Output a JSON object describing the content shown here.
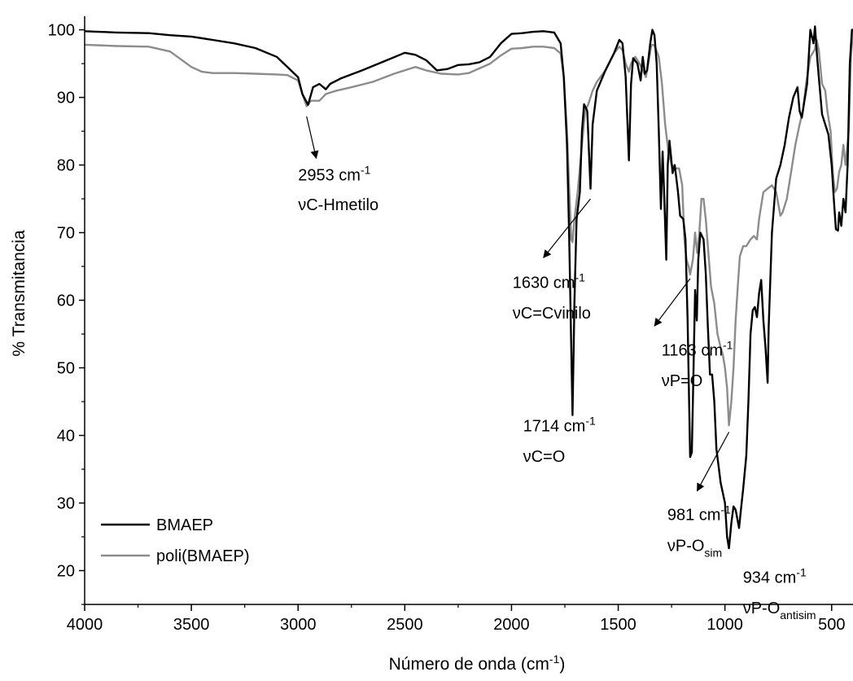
{
  "chart_data": {
    "type": "line",
    "title": "",
    "xlabel": "Número de onda (cm",
    "xlabel_sup": "-1",
    "xlabel_tail": ")",
    "ylabel": "% Transmitancia",
    "xlim": [
      4000,
      400
    ],
    "ylim": [
      15,
      102
    ],
    "x_reversed": true,
    "xticks": [
      4000,
      3500,
      3000,
      2500,
      2000,
      1500,
      1000,
      500
    ],
    "xtick_labels": [
      "4000",
      "3500",
      "3000",
      "2500",
      "2000",
      "1500",
      "1000",
      "500"
    ],
    "yticks": [
      20,
      30,
      40,
      50,
      60,
      70,
      80,
      90,
      100
    ],
    "ytick_labels": [
      "20",
      "30",
      "40",
      "50",
      "60",
      "70",
      "80",
      "90",
      "100"
    ],
    "grid": false,
    "legend_position": "bottom-left",
    "series": [
      {
        "name": "BMAEP",
        "color": "#000000",
        "points": [
          [
            4000,
            99.8
          ],
          [
            3850,
            99.6
          ],
          [
            3700,
            99.5
          ],
          [
            3600,
            99.2
          ],
          [
            3500,
            99
          ],
          [
            3400,
            98.5
          ],
          [
            3300,
            98
          ],
          [
            3200,
            97.3
          ],
          [
            3100,
            96
          ],
          [
            3050,
            94.5
          ],
          [
            3000,
            93
          ],
          [
            2980,
            90.5
          ],
          [
            2953,
            88.9
          ],
          [
            2930,
            91.5
          ],
          [
            2900,
            92
          ],
          [
            2870,
            91.2
          ],
          [
            2850,
            92
          ],
          [
            2800,
            92.8
          ],
          [
            2700,
            94
          ],
          [
            2600,
            95.3
          ],
          [
            2500,
            96.6
          ],
          [
            2450,
            96.3
          ],
          [
            2400,
            95.5
          ],
          [
            2350,
            94
          ],
          [
            2300,
            94.2
          ],
          [
            2250,
            94.8
          ],
          [
            2200,
            94.9
          ],
          [
            2150,
            95.2
          ],
          [
            2100,
            96
          ],
          [
            2050,
            98
          ],
          [
            2000,
            99.4
          ],
          [
            1950,
            99.5
          ],
          [
            1900,
            99.7
          ],
          [
            1850,
            99.8
          ],
          [
            1800,
            99.6
          ],
          [
            1770,
            98
          ],
          [
            1755,
            93
          ],
          [
            1740,
            83
          ],
          [
            1730,
            70
          ],
          [
            1714,
            43
          ],
          [
            1705,
            60
          ],
          [
            1695,
            72
          ],
          [
            1680,
            76
          ],
          [
            1670,
            85
          ],
          [
            1660,
            89
          ],
          [
            1645,
            88
          ],
          [
            1630,
            76.5
          ],
          [
            1620,
            86
          ],
          [
            1600,
            91
          ],
          [
            1560,
            94
          ],
          [
            1520,
            96.5
          ],
          [
            1495,
            98.5
          ],
          [
            1480,
            98
          ],
          [
            1465,
            93
          ],
          [
            1450,
            80.7
          ],
          [
            1440,
            92
          ],
          [
            1430,
            95.8
          ],
          [
            1410,
            95
          ],
          [
            1395,
            92.5
          ],
          [
            1385,
            96
          ],
          [
            1375,
            93.5
          ],
          [
            1365,
            94
          ],
          [
            1350,
            98
          ],
          [
            1340,
            100
          ],
          [
            1330,
            99.2
          ],
          [
            1320,
            95
          ],
          [
            1310,
            85
          ],
          [
            1300,
            73.5
          ],
          [
            1292,
            82
          ],
          [
            1285,
            76
          ],
          [
            1275,
            66
          ],
          [
            1268,
            80
          ],
          [
            1260,
            83.6
          ],
          [
            1245,
            78.8
          ],
          [
            1235,
            80
          ],
          [
            1220,
            76
          ],
          [
            1210,
            72.5
          ],
          [
            1195,
            72
          ],
          [
            1185,
            69
          ],
          [
            1175,
            57
          ],
          [
            1163,
            36.8
          ],
          [
            1155,
            37.5
          ],
          [
            1145,
            53
          ],
          [
            1140,
            61.5
          ],
          [
            1132,
            57
          ],
          [
            1125,
            66
          ],
          [
            1115,
            70
          ],
          [
            1100,
            69
          ],
          [
            1090,
            64
          ],
          [
            1080,
            56
          ],
          [
            1070,
            49
          ],
          [
            1060,
            49
          ],
          [
            1050,
            45
          ],
          [
            1040,
            38
          ],
          [
            1020,
            33
          ],
          [
            1000,
            30
          ],
          [
            990,
            25
          ],
          [
            981,
            23.3
          ],
          [
            970,
            27
          ],
          [
            960,
            29.5
          ],
          [
            950,
            29
          ],
          [
            934,
            26.3
          ],
          [
            925,
            29
          ],
          [
            915,
            32
          ],
          [
            900,
            37
          ],
          [
            890,
            45
          ],
          [
            880,
            55
          ],
          [
            870,
            58.5
          ],
          [
            860,
            59
          ],
          [
            850,
            57.5
          ],
          [
            840,
            61
          ],
          [
            830,
            63
          ],
          [
            820,
            57
          ],
          [
            810,
            53
          ],
          [
            800,
            47.8
          ],
          [
            795,
            56
          ],
          [
            780,
            70
          ],
          [
            760,
            78
          ],
          [
            740,
            80
          ],
          [
            720,
            83
          ],
          [
            700,
            87
          ],
          [
            680,
            90
          ],
          [
            660,
            91.5
          ],
          [
            650,
            88
          ],
          [
            640,
            87
          ],
          [
            630,
            89
          ],
          [
            615,
            92
          ],
          [
            600,
            100
          ],
          [
            585,
            98
          ],
          [
            578,
            100.5
          ],
          [
            568,
            96
          ],
          [
            560,
            93
          ],
          [
            545,
            87.5
          ],
          [
            530,
            86
          ],
          [
            515,
            84.5
          ],
          [
            500,
            80
          ],
          [
            490,
            75
          ],
          [
            480,
            70.5
          ],
          [
            470,
            70.3
          ],
          [
            465,
            73
          ],
          [
            455,
            71
          ],
          [
            445,
            75
          ],
          [
            435,
            73
          ],
          [
            425,
            80
          ],
          [
            415,
            95
          ],
          [
            405,
            100
          ],
          [
            400,
            100
          ]
        ]
      },
      {
        "name": "poli(BMAEP)",
        "color": "#8c8c8c",
        "points": [
          [
            4000,
            97.8
          ],
          [
            3850,
            97.6
          ],
          [
            3700,
            97.5
          ],
          [
            3600,
            96.8
          ],
          [
            3500,
            94.5
          ],
          [
            3450,
            93.8
          ],
          [
            3400,
            93.6
          ],
          [
            3300,
            93.6
          ],
          [
            3200,
            93.5
          ],
          [
            3100,
            93.4
          ],
          [
            3050,
            93.3
          ],
          [
            3000,
            92.5
          ],
          [
            2980,
            90.5
          ],
          [
            2960,
            88.7
          ],
          [
            2940,
            89.5
          ],
          [
            2920,
            89.5
          ],
          [
            2900,
            89.5
          ],
          [
            2870,
            90.5
          ],
          [
            2820,
            91
          ],
          [
            2750,
            91.5
          ],
          [
            2650,
            92.3
          ],
          [
            2550,
            93.5
          ],
          [
            2450,
            94.5
          ],
          [
            2400,
            94
          ],
          [
            2330,
            93.5
          ],
          [
            2250,
            93.4
          ],
          [
            2200,
            93.6
          ],
          [
            2150,
            94.3
          ],
          [
            2100,
            95
          ],
          [
            2050,
            96.2
          ],
          [
            2000,
            97.2
          ],
          [
            1950,
            97.3
          ],
          [
            1900,
            97.5
          ],
          [
            1850,
            97.5
          ],
          [
            1800,
            97.3
          ],
          [
            1770,
            96.5
          ],
          [
            1755,
            93
          ],
          [
            1740,
            85
          ],
          [
            1730,
            77
          ],
          [
            1720,
            69
          ],
          [
            1714,
            68.6
          ],
          [
            1705,
            72
          ],
          [
            1690,
            76
          ],
          [
            1670,
            83
          ],
          [
            1655,
            88
          ],
          [
            1640,
            89
          ],
          [
            1620,
            91
          ],
          [
            1600,
            92.3
          ],
          [
            1560,
            94
          ],
          [
            1520,
            96.5
          ],
          [
            1495,
            97.5
          ],
          [
            1480,
            97
          ],
          [
            1465,
            95
          ],
          [
            1450,
            93.8
          ],
          [
            1440,
            95
          ],
          [
            1420,
            96
          ],
          [
            1400,
            95
          ],
          [
            1385,
            94
          ],
          [
            1370,
            93
          ],
          [
            1355,
            95.8
          ],
          [
            1345,
            97.8
          ],
          [
            1330,
            97.7
          ],
          [
            1310,
            96
          ],
          [
            1295,
            92
          ],
          [
            1280,
            86
          ],
          [
            1265,
            82
          ],
          [
            1250,
            80
          ],
          [
            1230,
            79.5
          ],
          [
            1215,
            79.5
          ],
          [
            1200,
            77
          ],
          [
            1190,
            69
          ],
          [
            1180,
            66
          ],
          [
            1170,
            65
          ],
          [
            1163,
            63.8
          ],
          [
            1150,
            66
          ],
          [
            1140,
            70
          ],
          [
            1130,
            67
          ],
          [
            1120,
            70
          ],
          [
            1110,
            75
          ],
          [
            1100,
            75
          ],
          [
            1090,
            72
          ],
          [
            1080,
            68
          ],
          [
            1065,
            62
          ],
          [
            1050,
            59.5
          ],
          [
            1035,
            55
          ],
          [
            1020,
            53
          ],
          [
            1010,
            52
          ],
          [
            1000,
            50
          ],
          [
            990,
            47
          ],
          [
            981,
            41.5
          ],
          [
            970,
            45
          ],
          [
            960,
            50
          ],
          [
            950,
            57
          ],
          [
            940,
            62
          ],
          [
            930,
            66.5
          ],
          [
            915,
            68
          ],
          [
            900,
            68
          ],
          [
            890,
            68.5
          ],
          [
            880,
            69
          ],
          [
            865,
            69.5
          ],
          [
            850,
            69
          ],
          [
            840,
            72
          ],
          [
            830,
            74
          ],
          [
            820,
            76
          ],
          [
            800,
            76.5
          ],
          [
            780,
            77
          ],
          [
            760,
            76
          ],
          [
            740,
            72.5
          ],
          [
            730,
            73
          ],
          [
            710,
            75
          ],
          [
            690,
            79
          ],
          [
            670,
            83
          ],
          [
            650,
            86
          ],
          [
            635,
            88
          ],
          [
            620,
            92
          ],
          [
            600,
            96
          ],
          [
            580,
            97
          ],
          [
            570,
            98.5
          ],
          [
            560,
            97
          ],
          [
            545,
            92
          ],
          [
            530,
            91
          ],
          [
            520,
            88
          ],
          [
            505,
            85
          ],
          [
            495,
            79
          ],
          [
            485,
            76
          ],
          [
            475,
            76.5
          ],
          [
            465,
            79
          ],
          [
            455,
            80
          ],
          [
            445,
            83
          ],
          [
            435,
            80
          ],
          [
            420,
            85
          ],
          [
            410,
            96
          ],
          [
            400,
            100
          ]
        ]
      }
    ],
    "annotations": [
      {
        "id": "a2953",
        "line1": "2953 cm",
        "sup": "-1",
        "line2": "νC-Hmetilo",
        "sub": "",
        "arrow_from": [
          2960,
          87.2
        ],
        "arrow_to": [
          2915,
          81
        ],
        "text_x": 3000,
        "text_y1": 77.7,
        "text_y2": 73.3
      },
      {
        "id": "a1630",
        "line1": "1630 cm",
        "sup": "-1",
        "line2": "νC=Cvinilo",
        "sub": "",
        "arrow_from": [
          1630,
          75
        ],
        "arrow_to": [
          1850,
          66.3
        ],
        "text_x": 1995,
        "text_y1": 61.8,
        "text_y2": 57.3
      },
      {
        "id": "a1163",
        "line1": "1163 cm",
        "sup": "-1",
        "line2": "νP=O",
        "sub": "",
        "arrow_from": [
          1163,
          63.2
        ],
        "arrow_to": [
          1330,
          56.2
        ],
        "text_x": 1297,
        "text_y1": 51.8,
        "text_y2": 47.3
      },
      {
        "id": "a1714",
        "line1": "1714 cm",
        "sup": "-1",
        "line2": "νC=O",
        "sub": "",
        "arrow_from": null,
        "arrow_to": null,
        "text_x": 1946,
        "text_y1": 40.6,
        "text_y2": 36.1
      },
      {
        "id": "a981",
        "line1": "981 cm",
        "sup": "-1",
        "line2": "νP-O",
        "sub": "sim",
        "arrow_from": [
          981,
          40.5
        ],
        "arrow_to": [
          1130,
          31.8
        ],
        "text_x": 1270,
        "text_y1": 27.5,
        "text_y2": 22.9
      },
      {
        "id": "a934",
        "line1": "934 cm",
        "sup": "-1",
        "line2": "νP-O",
        "sub": "antisim",
        "arrow_from": null,
        "arrow_to": null,
        "text_x": 916,
        "text_y1": 18.2,
        "text_y2": 13.7
      }
    ]
  }
}
